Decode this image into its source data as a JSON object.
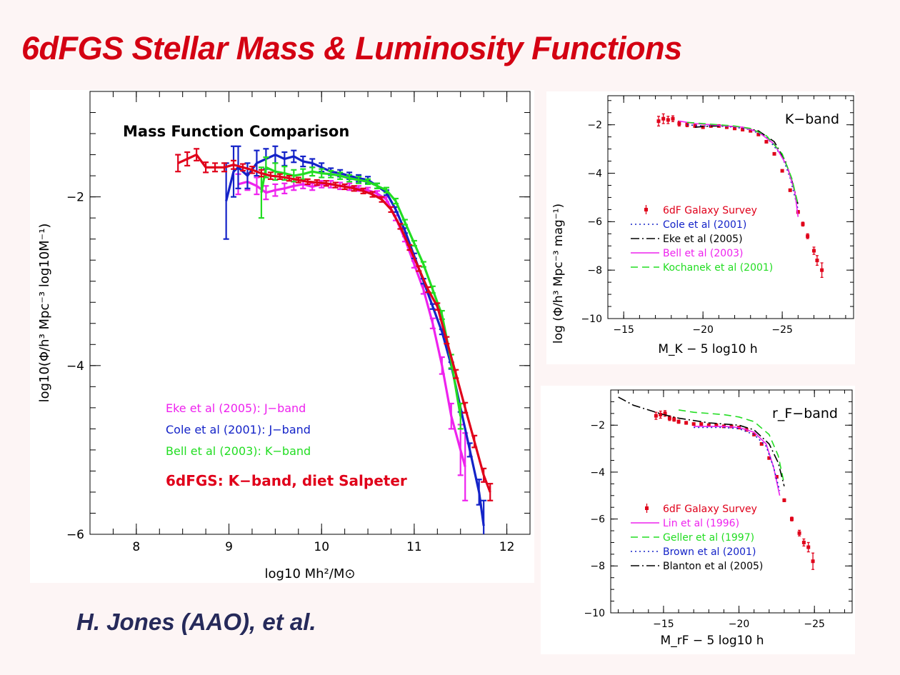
{
  "slide": {
    "title": "6dFGS Stellar Mass & Luminosity Functions",
    "author": "H. Jones (AAO), et al."
  },
  "colors": {
    "title": "#d40012",
    "author": "#262a5a",
    "red": "#e0001a",
    "blue": "#1423c8",
    "green": "#22dd22",
    "magenta": "#ee22ee",
    "black": "#000000"
  },
  "chart_data": [
    {
      "type": "line",
      "title": "Mass Function Comparison",
      "xlabel": "log10 Mh²/M⊙",
      "ylabel": "log10(Φ/h³   Mpc⁻³   log10M⁻¹)",
      "xlim": [
        7.5,
        12.25
      ],
      "ylim": [
        -6,
        -0.75
      ],
      "xticks": [
        8,
        9,
        10,
        11,
        12
      ],
      "yticks": [
        -2,
        -4,
        -6
      ],
      "grid": false,
      "legend_position": "lower-left",
      "annotations": [
        {
          "text": "Eke et al (2005):  J−band",
          "color": "#ee22ee"
        },
        {
          "text": "Cole et al (2001):  J−band",
          "color": "#1423c8"
        },
        {
          "text": "Bell et al (2003):  K−band",
          "color": "#22dd22"
        },
        {
          "text": "6dFGS: K−band, diet Salpeter",
          "color": "#e0001a"
        }
      ],
      "series": [
        {
          "name": "Eke et al (2005): J-band",
          "color": "#ee22ee",
          "x": [
            9.1,
            9.2,
            9.3,
            9.4,
            9.5,
            9.6,
            9.7,
            9.8,
            9.9,
            10.0,
            10.1,
            10.2,
            10.3,
            10.4,
            10.5,
            10.6,
            10.7,
            10.8,
            10.9,
            11.0,
            11.1,
            11.2,
            11.3,
            11.4,
            11.5,
            11.55
          ],
          "y": [
            -1.85,
            -1.82,
            -1.87,
            -1.95,
            -1.92,
            -1.9,
            -1.87,
            -1.85,
            -1.88,
            -1.85,
            -1.85,
            -1.87,
            -1.88,
            -1.9,
            -1.92,
            -1.96,
            -2.03,
            -2.25,
            -2.5,
            -2.8,
            -3.1,
            -3.5,
            -4.0,
            -4.6,
            -5.0,
            -5.2
          ],
          "err": [
            0.12,
            0.1,
            0.1,
            0.08,
            0.07,
            0.06,
            0.05,
            0.05,
            0.04,
            0.04,
            0.04,
            0.04,
            0.04,
            0.03,
            0.03,
            0.03,
            0.03,
            0.03,
            0.03,
            0.04,
            0.05,
            0.06,
            0.1,
            0.15,
            0.3,
            0.4
          ]
        },
        {
          "name": "Cole et al (2001): J-band",
          "color": "#1423c8",
          "x": [
            8.97,
            9.05,
            9.1,
            9.2,
            9.3,
            9.4,
            9.5,
            9.6,
            9.7,
            9.8,
            9.9,
            10.0,
            10.1,
            10.2,
            10.3,
            10.4,
            10.5,
            10.6,
            10.7,
            10.8,
            10.9,
            11.0,
            11.1,
            11.2,
            11.3,
            11.4,
            11.5,
            11.6,
            11.7,
            11.75
          ],
          "y": [
            -2.05,
            -1.7,
            -1.65,
            -1.75,
            -1.6,
            -1.55,
            -1.5,
            -1.55,
            -1.52,
            -1.58,
            -1.6,
            -1.65,
            -1.7,
            -1.72,
            -1.75,
            -1.78,
            -1.8,
            -1.87,
            -1.95,
            -2.15,
            -2.4,
            -2.7,
            -3.0,
            -3.3,
            -3.6,
            -4.0,
            -4.5,
            -5.0,
            -5.5,
            -5.9
          ],
          "err": [
            0.45,
            0.3,
            0.25,
            0.15,
            0.15,
            0.12,
            0.1,
            0.08,
            0.07,
            0.06,
            0.05,
            0.05,
            0.04,
            0.04,
            0.04,
            0.04,
            0.04,
            0.03,
            0.03,
            0.03,
            0.03,
            0.03,
            0.03,
            0.03,
            0.03,
            0.04,
            0.05,
            0.08,
            0.15,
            0.3
          ]
        },
        {
          "name": "Bell et al (2003): K-band",
          "color": "#22dd22",
          "x": [
            9.35,
            9.4,
            9.5,
            9.6,
            9.7,
            9.8,
            9.9,
            10.0,
            10.1,
            10.2,
            10.3,
            10.4,
            10.5,
            10.6,
            10.7,
            10.8,
            10.9,
            11.0,
            11.1,
            11.2,
            11.3,
            11.4,
            11.5
          ],
          "y": [
            -1.95,
            -1.65,
            -1.7,
            -1.72,
            -1.75,
            -1.73,
            -1.7,
            -1.72,
            -1.73,
            -1.75,
            -1.78,
            -1.8,
            -1.82,
            -1.87,
            -1.92,
            -2.05,
            -2.3,
            -2.55,
            -2.8,
            -3.1,
            -3.4,
            -3.95,
            -4.6
          ],
          "err": [
            0.3,
            0.12,
            0.1,
            0.08,
            0.07,
            0.06,
            0.05,
            0.05,
            0.04,
            0.04,
            0.04,
            0.04,
            0.03,
            0.03,
            0.03,
            0.03,
            0.03,
            0.03,
            0.03,
            0.04,
            0.05,
            0.08,
            0.15
          ]
        },
        {
          "name": "6dFGS: K-band, diet Salpeter",
          "color": "#e0001a",
          "x": [
            8.45,
            8.55,
            8.65,
            8.75,
            8.85,
            8.95,
            9.05,
            9.15,
            9.25,
            9.35,
            9.45,
            9.55,
            9.65,
            9.75,
            9.85,
            9.95,
            10.05,
            10.15,
            10.25,
            10.35,
            10.45,
            10.55,
            10.65,
            10.75,
            10.85,
            10.95,
            11.05,
            11.15,
            11.25,
            11.35,
            11.45,
            11.55,
            11.65,
            11.75,
            11.82
          ],
          "y": [
            -1.6,
            -1.55,
            -1.5,
            -1.65,
            -1.65,
            -1.65,
            -1.62,
            -1.65,
            -1.68,
            -1.72,
            -1.75,
            -1.76,
            -1.78,
            -1.8,
            -1.82,
            -1.83,
            -1.84,
            -1.86,
            -1.88,
            -1.9,
            -1.93,
            -1.97,
            -2.03,
            -2.15,
            -2.35,
            -2.6,
            -2.85,
            -3.1,
            -3.3,
            -3.7,
            -4.1,
            -4.5,
            -4.9,
            -5.3,
            -5.5
          ],
          "err": [
            0.1,
            0.08,
            0.07,
            0.06,
            0.05,
            0.05,
            0.05,
            0.04,
            0.04,
            0.04,
            0.04,
            0.03,
            0.03,
            0.03,
            0.03,
            0.03,
            0.03,
            0.03,
            0.03,
            0.03,
            0.03,
            0.03,
            0.03,
            0.03,
            0.03,
            0.03,
            0.03,
            0.03,
            0.04,
            0.04,
            0.05,
            0.06,
            0.07,
            0.08,
            0.1
          ]
        }
      ]
    },
    {
      "type": "line",
      "title": "K−band",
      "xlabel": "M_K − 5 log10 h",
      "ylabel": "log (Φ/h³   Mpc⁻³   mag⁻¹)",
      "xlim": [
        -14,
        -29.5
      ],
      "ylim": [
        -10,
        -0.8
      ],
      "xticks": [
        -15,
        -20,
        -25
      ],
      "yticks": [
        -2,
        -4,
        -6,
        -8,
        -10
      ],
      "grid": false,
      "legend_position": "lower-left",
      "series": [
        {
          "name": "6dF Galaxy Survey",
          "color": "#e0001a",
          "style": "points",
          "x": [
            -17.2,
            -17.5,
            -17.8,
            -18.1,
            -18.5,
            -19.0,
            -19.5,
            -20.0,
            -20.5,
            -21.0,
            -21.5,
            -22.0,
            -22.5,
            -23.0,
            -23.5,
            -24.0,
            -24.5,
            -25.0,
            -25.5,
            -26.0,
            -26.3,
            -26.6,
            -27.0,
            -27.2,
            -27.5
          ],
          "y": [
            -1.85,
            -1.75,
            -1.8,
            -1.75,
            -1.95,
            -2.0,
            -2.05,
            -2.1,
            -2.05,
            -2.05,
            -2.1,
            -2.15,
            -2.2,
            -2.25,
            -2.4,
            -2.7,
            -3.2,
            -3.9,
            -4.7,
            -5.6,
            -6.1,
            -6.6,
            -7.2,
            -7.6,
            -8.0
          ],
          "err": [
            0.2,
            0.2,
            0.15,
            0.12,
            0.1,
            0.08,
            0.06,
            0.05,
            0.04,
            0.04,
            0.03,
            0.03,
            0.03,
            0.03,
            0.03,
            0.03,
            0.03,
            0.04,
            0.05,
            0.06,
            0.08,
            0.1,
            0.15,
            0.2,
            0.3
          ]
        },
        {
          "name": "Cole et al (2001)",
          "color": "#1423c8",
          "style": "dotted",
          "x": [
            -19,
            -20,
            -21,
            -22,
            -23,
            -24,
            -25,
            -25.5,
            -26
          ],
          "y": [
            -2.0,
            -2.05,
            -2.05,
            -2.1,
            -2.2,
            -2.5,
            -3.3,
            -4.2,
            -5.5
          ]
        },
        {
          "name": "Eke et al (2005)",
          "color": "#000000",
          "style": "dashdot",
          "x": [
            -19.5,
            -20.5,
            -21.5,
            -22.5,
            -23.5,
            -24.5,
            -25.2,
            -25.7,
            -26.0
          ],
          "y": [
            -2.1,
            -2.05,
            -2.05,
            -2.1,
            -2.25,
            -2.7,
            -3.5,
            -4.5,
            -5.3
          ]
        },
        {
          "name": "Bell et al (2003)",
          "color": "#ee22ee",
          "style": "solid",
          "x": [
            -18.5,
            -19.5,
            -20.5,
            -21.5,
            -22.5,
            -23.5,
            -24.5,
            -25.3,
            -25.8,
            -26.0
          ],
          "y": [
            -1.85,
            -1.95,
            -2.0,
            -2.05,
            -2.1,
            -2.3,
            -2.8,
            -3.7,
            -4.8,
            -5.8
          ]
        },
        {
          "name": "Kochanek et al (2001)",
          "color": "#22dd22",
          "style": "dashed",
          "x": [
            -19,
            -20,
            -21,
            -22,
            -23,
            -24,
            -25,
            -25.6,
            -26
          ],
          "y": [
            -1.9,
            -1.95,
            -2.0,
            -2.05,
            -2.15,
            -2.45,
            -3.2,
            -4.2,
            -5.3
          ]
        }
      ]
    },
    {
      "type": "line",
      "title": "r_F−band",
      "xlabel": "M_rF − 5 log10 h",
      "ylabel": "log (Φ/h³   Mpc⁻³   mag⁻¹)",
      "xlim": [
        -11.5,
        -27.5
      ],
      "ylim": [
        -10,
        -0.5
      ],
      "xticks": [
        -15,
        -20,
        -25
      ],
      "yticks": [
        -2,
        -4,
        -6,
        -8,
        -10
      ],
      "grid": false,
      "legend_position": "lower-left",
      "series": [
        {
          "name": "6dF Galaxy Survey",
          "color": "#e0001a",
          "style": "points",
          "x": [
            -14.5,
            -14.8,
            -15.1,
            -15.4,
            -15.7,
            -16.0,
            -16.5,
            -17.0,
            -17.5,
            -18.0,
            -18.5,
            -19.0,
            -19.5,
            -20.0,
            -20.5,
            -21.0,
            -21.5,
            -22.0,
            -22.5,
            -23.0,
            -23.5,
            -24.0,
            -24.3,
            -24.6,
            -24.9
          ],
          "y": [
            -1.6,
            -1.55,
            -1.5,
            -1.7,
            -1.75,
            -1.85,
            -1.9,
            -1.95,
            -1.95,
            -2.0,
            -2.0,
            -2.05,
            -2.05,
            -2.1,
            -2.2,
            -2.4,
            -2.8,
            -3.4,
            -4.2,
            -5.2,
            -6.0,
            -6.6,
            -7.0,
            -7.2,
            -7.8
          ],
          "err": [
            0.15,
            0.15,
            0.12,
            0.1,
            0.08,
            0.07,
            0.06,
            0.05,
            0.04,
            0.04,
            0.03,
            0.03,
            0.03,
            0.03,
            0.03,
            0.03,
            0.03,
            0.04,
            0.05,
            0.06,
            0.08,
            0.12,
            0.15,
            0.2,
            0.35
          ]
        },
        {
          "name": "Lin et al (1996)",
          "color": "#ee22ee",
          "style": "solid",
          "x": [
            -17,
            -18,
            -19,
            -20,
            -21,
            -21.8,
            -22.3,
            -22.7
          ],
          "y": [
            -2.05,
            -2.05,
            -2.05,
            -2.1,
            -2.3,
            -2.8,
            -3.8,
            -5.0
          ]
        },
        {
          "name": "Geller et al (1997)",
          "color": "#22dd22",
          "style": "dashed",
          "x": [
            -16,
            -17,
            -18,
            -19,
            -20,
            -21,
            -22,
            -22.6,
            -23.0
          ],
          "y": [
            -1.35,
            -1.45,
            -1.5,
            -1.55,
            -1.65,
            -1.85,
            -2.4,
            -3.3,
            -4.5
          ]
        },
        {
          "name": "Brown et al (2001)",
          "color": "#1423c8",
          "style": "dotted",
          "x": [
            -17,
            -18,
            -19,
            -20,
            -21,
            -21.8,
            -22.3,
            -22.7
          ],
          "y": [
            -2.1,
            -2.1,
            -2.1,
            -2.15,
            -2.4,
            -2.9,
            -3.8,
            -4.8
          ]
        },
        {
          "name": "Blanton et al (2005)",
          "color": "#000000",
          "style": "dashdot",
          "x": [
            -12.0,
            -13,
            -14,
            -15,
            -16,
            -17,
            -18,
            -19,
            -20,
            -21,
            -22,
            -22.6,
            -23.0
          ],
          "y": [
            -0.8,
            -1.15,
            -1.35,
            -1.55,
            -1.7,
            -1.8,
            -1.9,
            -1.95,
            -2.0,
            -2.2,
            -2.8,
            -3.6,
            -4.6
          ]
        }
      ]
    }
  ]
}
